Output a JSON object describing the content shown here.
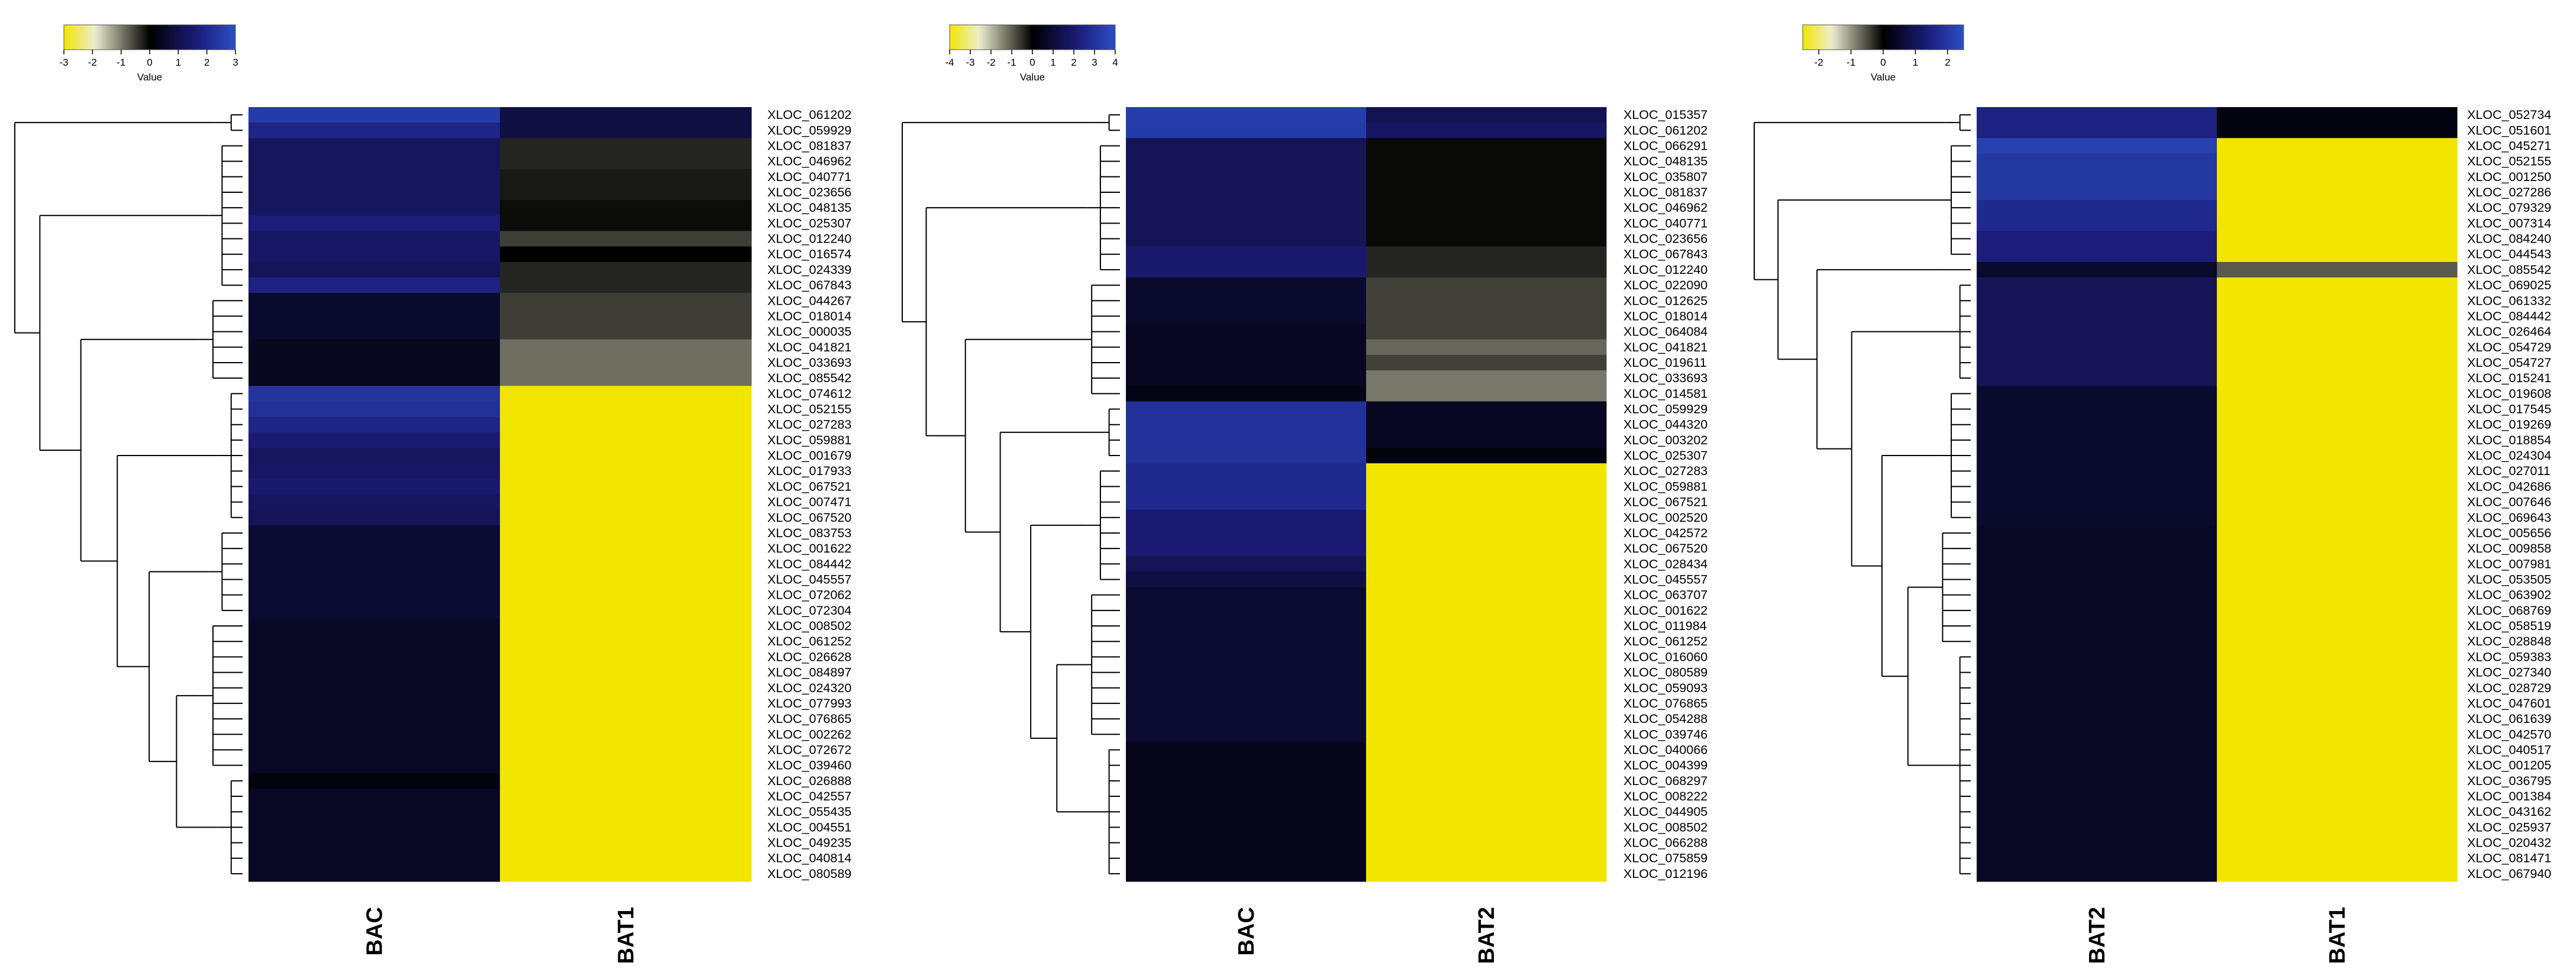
{
  "chart_data": [
    {
      "type": "heatmap",
      "colorbar": {
        "label": "Value",
        "ticks": [
          "-3",
          "-2",
          "-1",
          "0",
          "1",
          "2",
          "3"
        ],
        "range": [
          -3,
          3
        ],
        "colors": [
          "#f2e600",
          "#ededd0",
          "#000000",
          "#1c1c7a",
          "#2b4fc4"
        ]
      },
      "columns": [
        "BAC",
        "BAT1"
      ],
      "rows": [
        "XLOC_061202",
        "XLOC_059929",
        "XLOC_081837",
        "XLOC_046962",
        "XLOC_040771",
        "XLOC_023656",
        "XLOC_048135",
        "XLOC_025307",
        "XLOC_012240",
        "XLOC_016574",
        "XLOC_024339",
        "XLOC_067843",
        "XLOC_044267",
        "XLOC_018014",
        "XLOC_000035",
        "XLOC_041821",
        "XLOC_033693",
        "XLOC_085542",
        "XLOC_074612",
        "XLOC_052155",
        "XLOC_027283",
        "XLOC_059881",
        "XLOC_001679",
        "XLOC_017933",
        "XLOC_067521",
        "XLOC_007471",
        "XLOC_067520",
        "XLOC_083753",
        "XLOC_001622",
        "XLOC_084442",
        "XLOC_045557",
        "XLOC_072062",
        "XLOC_072304",
        "XLOC_008502",
        "XLOC_061252",
        "XLOC_026628",
        "XLOC_084897",
        "XLOC_024320",
        "XLOC_077993",
        "XLOC_076865",
        "XLOC_002262",
        "XLOC_072672",
        "XLOC_039460",
        "XLOC_026888",
        "XLOC_042557",
        "XLOC_055435",
        "XLOC_004551",
        "XLOC_049235",
        "XLOC_040814",
        "XLOC_080589"
      ],
      "values": [
        [
          2.5,
          0.9
        ],
        [
          1.9,
          0.9
        ],
        [
          1.3,
          -0.3
        ],
        [
          1.3,
          -0.3
        ],
        [
          1.3,
          -0.2
        ],
        [
          1.3,
          -0.2
        ],
        [
          1.3,
          -0.1
        ],
        [
          1.7,
          -0.1
        ],
        [
          1.4,
          -0.5
        ],
        [
          1.4,
          0
        ],
        [
          1.2,
          -0.3
        ],
        [
          1.8,
          -0.3
        ],
        [
          0.6,
          -0.5
        ],
        [
          0.6,
          -0.5
        ],
        [
          0.6,
          -0.5
        ],
        [
          0.4,
          -0.9
        ],
        [
          0.4,
          -0.9
        ],
        [
          0.4,
          -0.9
        ],
        [
          2.3,
          -3
        ],
        [
          2.2,
          -3
        ],
        [
          1.9,
          -3
        ],
        [
          1.6,
          -3
        ],
        [
          1.3,
          -3
        ],
        [
          1.4,
          -3
        ],
        [
          1.5,
          -3
        ],
        [
          1.3,
          -3
        ],
        [
          1.2,
          -3
        ],
        [
          0.7,
          -3
        ],
        [
          0.7,
          -3
        ],
        [
          0.7,
          -3
        ],
        [
          0.7,
          -3
        ],
        [
          0.7,
          -3
        ],
        [
          0.7,
          -3
        ],
        [
          0.5,
          -3
        ],
        [
          0.5,
          -3
        ],
        [
          0.5,
          -3
        ],
        [
          0.5,
          -3
        ],
        [
          0.5,
          -3
        ],
        [
          0.5,
          -3
        ],
        [
          0.5,
          -3
        ],
        [
          0.5,
          -3
        ],
        [
          0.5,
          -3
        ],
        [
          0.5,
          -3
        ],
        [
          0.2,
          -3
        ],
        [
          0.5,
          -3
        ],
        [
          0.5,
          -3
        ],
        [
          0.5,
          -3
        ],
        [
          0.5,
          -3
        ],
        [
          0.5,
          -3
        ],
        [
          0.5,
          -3
        ]
      ]
    },
    {
      "type": "heatmap",
      "colorbar": {
        "label": "Value",
        "ticks": [
          "-4",
          "-3",
          "-2",
          "-1",
          "0",
          "1",
          "2",
          "3",
          "4"
        ],
        "range": [
          -4,
          4
        ],
        "colors": [
          "#f2e600",
          "#ededd0",
          "#000000",
          "#1c1c7a",
          "#2b4fc4"
        ]
      },
      "columns": [
        "BAC",
        "BAT2"
      ],
      "rows": [
        "XLOC_015357",
        "XLOC_061202",
        "XLOC_066291",
        "XLOC_048135",
        "XLOC_035807",
        "XLOC_081837",
        "XLOC_046962",
        "XLOC_040771",
        "XLOC_023656",
        "XLOC_067843",
        "XLOC_012240",
        "XLOC_022090",
        "XLOC_012625",
        "XLOC_018014",
        "XLOC_064084",
        "XLOC_041821",
        "XLOC_019611",
        "XLOC_033693",
        "XLOC_014581",
        "XLOC_059929",
        "XLOC_044320",
        "XLOC_003202",
        "XLOC_025307",
        "XLOC_027283",
        "XLOC_059881",
        "XLOC_067521",
        "XLOC_002520",
        "XLOC_042572",
        "XLOC_067520",
        "XLOC_028434",
        "XLOC_045557",
        "XLOC_063707",
        "XLOC_001622",
        "XLOC_011984",
        "XLOC_061252",
        "XLOC_016060",
        "XLOC_080589",
        "XLOC_059093",
        "XLOC_076865",
        "XLOC_054288",
        "XLOC_039746",
        "XLOC_040066",
        "XLOC_004399",
        "XLOC_068297",
        "XLOC_008222",
        "XLOC_044905",
        "XLOC_008502",
        "XLOC_066288",
        "XLOC_075859",
        "XLOC_012196"
      ],
      "values": [
        [
          3.4,
          1.5
        ],
        [
          3.3,
          1.8
        ],
        [
          1.6,
          -0.1
        ],
        [
          1.6,
          -0.1
        ],
        [
          1.6,
          -0.1
        ],
        [
          1.6,
          -0.1
        ],
        [
          1.6,
          -0.1
        ],
        [
          1.6,
          -0.1
        ],
        [
          1.6,
          -0.1
        ],
        [
          2.0,
          -0.4
        ],
        [
          2.0,
          -0.4
        ],
        [
          0.8,
          -0.7
        ],
        [
          0.8,
          -0.7
        ],
        [
          0.8,
          -0.7
        ],
        [
          0.6,
          -0.7
        ],
        [
          0.6,
          -1.1
        ],
        [
          0.6,
          -0.7
        ],
        [
          0.6,
          -1.3
        ],
        [
          0.4,
          -1.3
        ],
        [
          3.0,
          0.6
        ],
        [
          3.0,
          0.6
        ],
        [
          3.0,
          0.6
        ],
        [
          3.0,
          0.2
        ],
        [
          2.7,
          -4
        ],
        [
          2.7,
          -4
        ],
        [
          2.7,
          -4
        ],
        [
          2.1,
          -4
        ],
        [
          2.1,
          -4
        ],
        [
          2.1,
          -4
        ],
        [
          1.6,
          -4
        ],
        [
          1.2,
          -4
        ],
        [
          0.9,
          -4
        ],
        [
          0.9,
          -4
        ],
        [
          0.9,
          -4
        ],
        [
          0.9,
          -4
        ],
        [
          0.9,
          -4
        ],
        [
          0.9,
          -4
        ],
        [
          0.9,
          -4
        ],
        [
          0.9,
          -4
        ],
        [
          0.9,
          -4
        ],
        [
          0.9,
          -4
        ],
        [
          0.5,
          -4
        ],
        [
          0.5,
          -4
        ],
        [
          0.5,
          -4
        ],
        [
          0.5,
          -4
        ],
        [
          0.5,
          -4
        ],
        [
          0.5,
          -4
        ],
        [
          0.5,
          -4
        ],
        [
          0.5,
          -4
        ],
        [
          0.5,
          -4
        ]
      ]
    },
    {
      "type": "heatmap",
      "colorbar": {
        "label": "Value",
        "ticks": [
          "-2",
          "-1",
          "0",
          "1",
          "2"
        ],
        "range": [
          -2.5,
          2.5
        ],
        "colors": [
          "#f2e600",
          "#ededd0",
          "#000000",
          "#1c1c7a",
          "#2b4fc4"
        ]
      },
      "columns": [
        "BAT2",
        "BAT1"
      ],
      "rows": [
        "XLOC_052734",
        "XLOC_051601",
        "XLOC_045271",
        "XLOC_052155",
        "XLOC_001250",
        "XLOC_027286",
        "XLOC_079329",
        "XLOC_007314",
        "XLOC_084240",
        "XLOC_044543",
        "XLOC_085542",
        "XLOC_069025",
        "XLOC_061332",
        "XLOC_084442",
        "XLOC_026464",
        "XLOC_054729",
        "XLOC_054727",
        "XLOC_015241",
        "XLOC_019608",
        "XLOC_017545",
        "XLOC_019269",
        "XLOC_018854",
        "XLOC_024304",
        "XLOC_027011",
        "XLOC_042686",
        "XLOC_007646",
        "XLOC_069643",
        "XLOC_005656",
        "XLOC_009858",
        "XLOC_007981",
        "XLOC_053505",
        "XLOC_063902",
        "XLOC_068769",
        "XLOC_058519",
        "XLOC_028848",
        "XLOC_059383",
        "XLOC_027340",
        "XLOC_028729",
        "XLOC_047601",
        "XLOC_061639",
        "XLOC_042570",
        "XLOC_040517",
        "XLOC_001205",
        "XLOC_036795",
        "XLOC_001384",
        "XLOC_043162",
        "XLOC_025937",
        "XLOC_020432",
        "XLOC_081471",
        "XLOC_067940"
      ],
      "values": [
        [
          1.5,
          0.2
        ],
        [
          1.5,
          0.2
        ],
        [
          2.2,
          -2.5
        ],
        [
          2.0,
          -2.5
        ],
        [
          2.0,
          -2.5
        ],
        [
          2.0,
          -2.5
        ],
        [
          1.7,
          -2.5
        ],
        [
          1.7,
          -2.5
        ],
        [
          1.4,
          -2.5
        ],
        [
          1.4,
          -2.5
        ],
        [
          0.5,
          -0.6
        ],
        [
          1.0,
          -2.5
        ],
        [
          1.0,
          -2.5
        ],
        [
          1.0,
          -2.5
        ],
        [
          1.0,
          -2.5
        ],
        [
          1.0,
          -2.5
        ],
        [
          1.0,
          -2.5
        ],
        [
          1.0,
          -2.5
        ],
        [
          0.5,
          -2.5
        ],
        [
          0.5,
          -2.5
        ],
        [
          0.5,
          -2.5
        ],
        [
          0.5,
          -2.5
        ],
        [
          0.5,
          -2.5
        ],
        [
          0.5,
          -2.5
        ],
        [
          0.5,
          -2.5
        ],
        [
          0.5,
          -2.5
        ],
        [
          0.5,
          -2.5
        ],
        [
          0.4,
          -2.5
        ],
        [
          0.4,
          -2.5
        ],
        [
          0.4,
          -2.5
        ],
        [
          0.4,
          -2.5
        ],
        [
          0.4,
          -2.5
        ],
        [
          0.4,
          -2.5
        ],
        [
          0.4,
          -2.5
        ],
        [
          0.4,
          -2.5
        ],
        [
          0.4,
          -2.5
        ],
        [
          0.4,
          -2.5
        ],
        [
          0.4,
          -2.5
        ],
        [
          0.4,
          -2.5
        ],
        [
          0.4,
          -2.5
        ],
        [
          0.4,
          -2.5
        ],
        [
          0.4,
          -2.5
        ],
        [
          0.4,
          -2.5
        ],
        [
          0.4,
          -2.5
        ],
        [
          0.4,
          -2.5
        ],
        [
          0.4,
          -2.5
        ],
        [
          0.4,
          -2.5
        ],
        [
          0.4,
          -2.5
        ],
        [
          0.4,
          -2.5
        ],
        [
          0.4,
          -2.5
        ]
      ]
    }
  ]
}
